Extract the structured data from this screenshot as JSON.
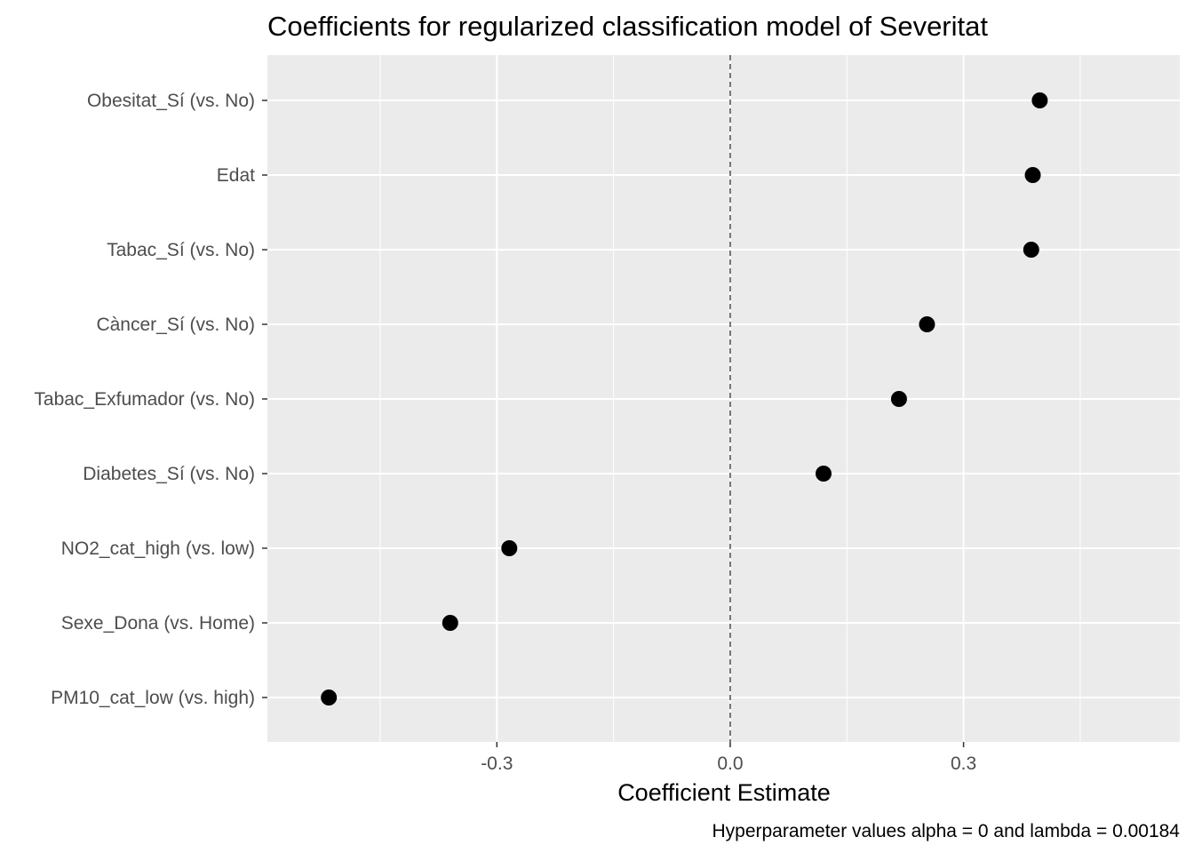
{
  "chart_data": {
    "type": "scatter",
    "title": "Coefficients for regularized classification model of Severitat",
    "xlabel": "Coefficient Estimate",
    "ylabel": "",
    "caption": "Hyperparameter values alpha = 0 and lambda = 0.00184",
    "xlim": [
      -0.595,
      0.578
    ],
    "xticks": [
      {
        "value": -0.3,
        "label": "-0.3"
      },
      {
        "value": 0.0,
        "label": "0.0"
      },
      {
        "value": 0.3,
        "label": "0.3"
      }
    ],
    "reference_line": {
      "value": 0.0,
      "style": "dashed"
    },
    "categories": [
      "Obesitat_Sí (vs. No)",
      "Edat",
      "Tabac_Sí (vs. No)",
      "Càncer_Sí (vs. No)",
      "Tabac_Exfumador (vs. No)",
      "Diabetes_Sí (vs. No)",
      "NO2_cat_high (vs. low)",
      "Sexe_Dona (vs. Home)",
      "PM10_cat_low (vs. high)"
    ],
    "values": [
      0.398,
      0.389,
      0.387,
      0.253,
      0.217,
      0.12,
      -0.284,
      -0.36,
      -0.516
    ],
    "grid": true,
    "legend": "none",
    "colors": {
      "panel": "#ebebeb",
      "grid": "#ffffff",
      "point": "#000000",
      "refline": "#555555"
    }
  }
}
